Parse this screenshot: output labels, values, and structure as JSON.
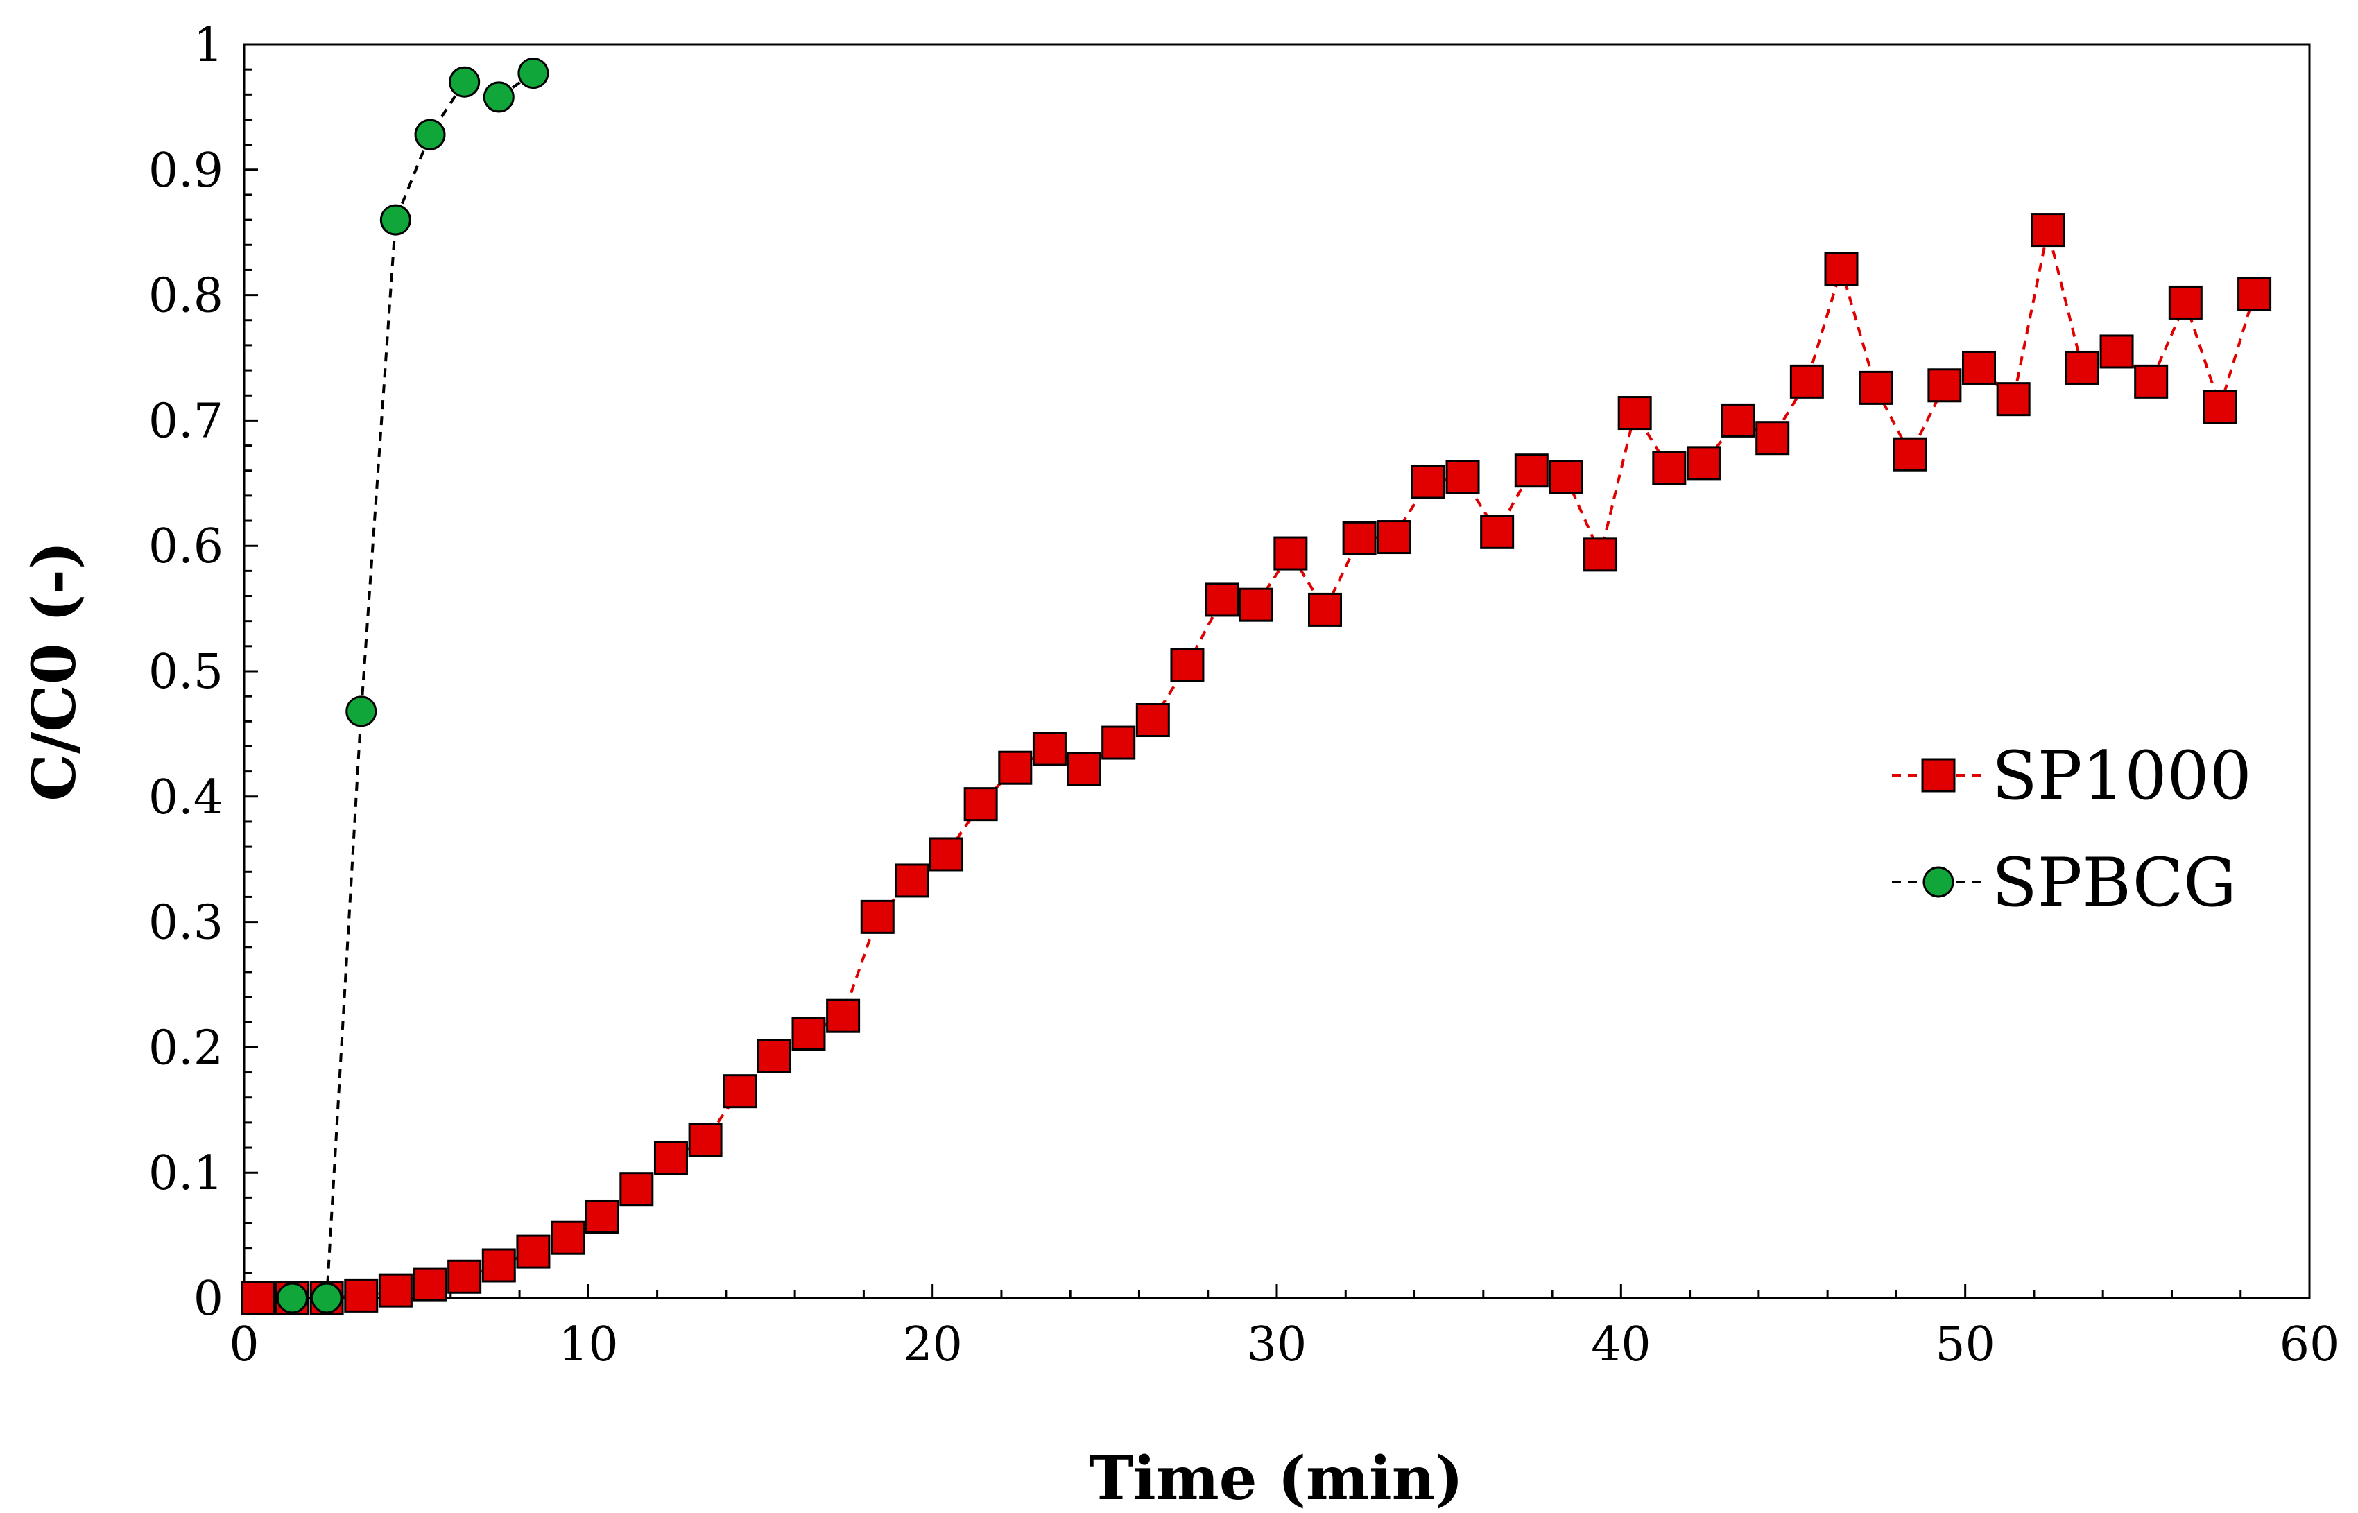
{
  "chart_data": {
    "type": "scatter",
    "title": "",
    "xlabel": "Time (min)",
    "ylabel": "C/C0 (-)",
    "xlim": [
      0,
      60
    ],
    "ylim": [
      0,
      1
    ],
    "xticks": [
      0,
      10,
      20,
      30,
      40,
      50,
      60
    ],
    "yticks": [
      0,
      0.1,
      0.2,
      0.3,
      0.4,
      0.5,
      0.6,
      0.7,
      0.8,
      0.9,
      1
    ],
    "xtick_labels": [
      "0",
      "10",
      "20",
      "30",
      "40",
      "50",
      "60"
    ],
    "ytick_labels": [
      "0",
      "0.1",
      "0.2",
      "0.3",
      "0.4",
      "0.5",
      "0.6",
      "0.7",
      "0.8",
      "0.9",
      "1"
    ],
    "grid": false,
    "legend_position": "right",
    "series": [
      {
        "name": "SP1000",
        "marker": "square",
        "line": "dashed",
        "color": "#e00000",
        "line_color": "#e00000",
        "x": [
          0.4,
          1.4,
          2.4,
          3.4,
          4.4,
          5.4,
          6.4,
          7.4,
          8.4,
          9.4,
          10.4,
          11.4,
          12.4,
          13.4,
          14.4,
          15.4,
          16.4,
          17.4,
          18.4,
          19.4,
          20.4,
          21.4,
          22.4,
          23.4,
          24.4,
          25.4,
          26.4,
          27.4,
          28.4,
          29.4,
          30.4,
          31.4,
          32.4,
          33.4,
          34.4,
          35.4,
          36.4,
          37.4,
          38.4,
          39.4,
          40.4,
          41.4,
          42.4,
          43.4,
          44.4,
          45.4,
          46.4,
          47.4,
          48.4,
          49.4,
          50.4,
          51.4,
          52.4,
          53.4,
          54.4,
          55.4,
          56.4,
          57.4,
          58.4
        ],
        "y": [
          0,
          0,
          0,
          0.002,
          0.006,
          0.011,
          0.017,
          0.026,
          0.037,
          0.048,
          0.065,
          0.087,
          0.112,
          0.126,
          0.165,
          0.193,
          0.211,
          0.225,
          0.304,
          0.333,
          0.354,
          0.394,
          0.423,
          0.438,
          0.422,
          0.443,
          0.461,
          0.505,
          0.557,
          0.553,
          0.594,
          0.549,
          0.606,
          0.607,
          0.651,
          0.655,
          0.611,
          0.66,
          0.655,
          0.593,
          0.706,
          0.662,
          0.666,
          0.7,
          0.686,
          0.731,
          0.821,
          0.726,
          0.673,
          0.728,
          0.742,
          0.717,
          0.852,
          0.742,
          0.755,
          0.731,
          0.794,
          0.711,
          0.801
        ]
      },
      {
        "name": "SPBCG",
        "marker": "circle",
        "line": "dashed",
        "color": "#10a63a",
        "line_color": "#000000",
        "x": [
          1.4,
          2.4,
          3.4,
          4.4,
          5.4,
          6.4,
          7.4,
          8.4
        ],
        "y": [
          0,
          0,
          0.468,
          0.86,
          0.928,
          0.97,
          0.958,
          0.977
        ]
      }
    ]
  }
}
